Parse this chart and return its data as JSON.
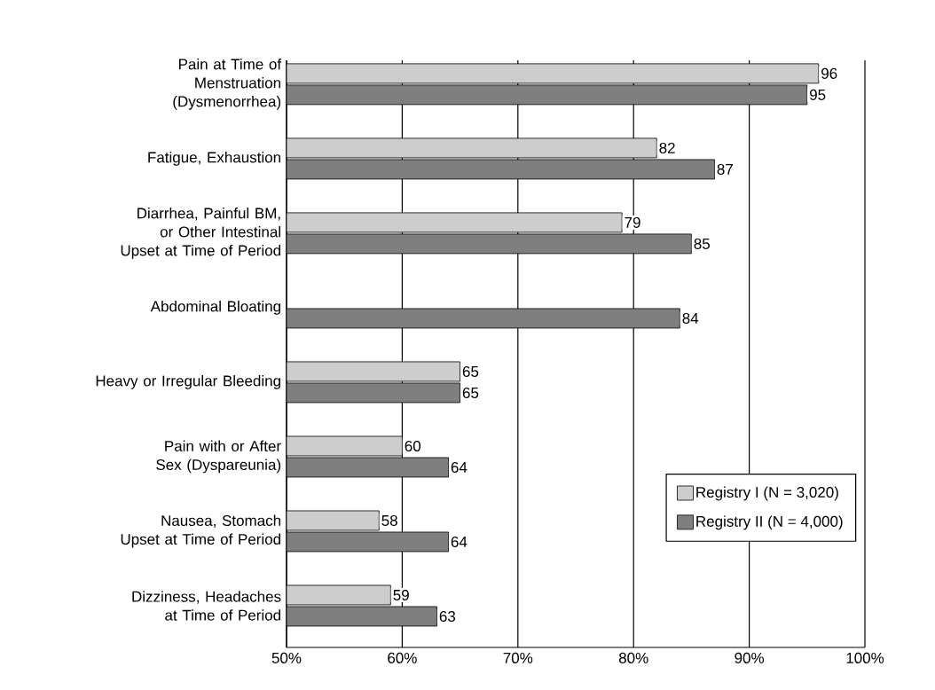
{
  "chart_data": {
    "type": "bar",
    "orientation": "horizontal",
    "categories": [
      "Pain at Time of Menstruation (Dysmenorrhea)",
      "Fatigue, Exhaustion",
      "Diarrhea, Painful BM, or Other Intestinal Upset at Time of Period",
      "Abdominal Bloating",
      "Heavy or Irregular Bleeding",
      "Pain with or After Sex (Dyspareunia)",
      "Nausea, Stomach Upset at Time of Period",
      "Dizziness, Headaches at Time of Period"
    ],
    "series": [
      {
        "name": "Registry I (N = 3,020)",
        "color": "#cdcdcd",
        "values": [
          96,
          82,
          79,
          null,
          65,
          60,
          58,
          59
        ]
      },
      {
        "name": "Registry II (N = 4,000)",
        "color": "#7f7f7f",
        "values": [
          95,
          87,
          85,
          84,
          65,
          64,
          64,
          63
        ]
      }
    ],
    "xlim": [
      50,
      100
    ],
    "xticks": [
      {
        "value": 50,
        "label": "50%"
      },
      {
        "value": 60,
        "label": "60%"
      },
      {
        "value": 70,
        "label": "70%"
      },
      {
        "value": 80,
        "label": "80%"
      },
      {
        "value": 90,
        "label": "90%"
      },
      {
        "value": 100,
        "label": "100%"
      }
    ],
    "grid": "x",
    "legend": "bottom right",
    "data_labels": true
  }
}
